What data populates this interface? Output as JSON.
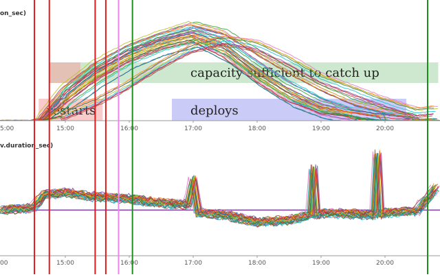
{
  "chart_data": [
    {
      "type": "line",
      "panel_title": "on_sec)",
      "x_ticks": [
        "15:00",
        "16:00",
        "17:00",
        "18:00",
        "19:00",
        "20:00"
      ],
      "x_edge_tick": "5:00",
      "xlim": [
        "14:00",
        "20:50"
      ],
      "y_ticks": [],
      "series_note": "many overlapping per-instance series rising from ~14:40, peaking near 17:00, declining after 17:30",
      "series": [
        {
          "name": "",
          "x": [
            "14:00",
            "14:30",
            "14:40",
            "15:00",
            "15:30",
            "16:00",
            "16:30",
            "17:00",
            "17:30",
            "18:00",
            "18:30",
            "19:00",
            "19:30",
            "20:00",
            "20:30",
            "20:50"
          ],
          "values": [
            0,
            0,
            0.03,
            0.3,
            0.55,
            0.72,
            0.84,
            0.94,
            0.86,
            0.66,
            0.47,
            0.3,
            0.16,
            0.07,
            0.01,
            0.02
          ]
        },
        {
          "name": "",
          "x": [
            "14:00",
            "14:30",
            "14:40",
            "15:00",
            "15:30",
            "16:00",
            "16:30",
            "17:00",
            "17:30",
            "18:00",
            "18:30",
            "19:00",
            "19:30",
            "20:00",
            "20:30",
            "20:50"
          ],
          "values": [
            0,
            0,
            0.02,
            0.25,
            0.5,
            0.68,
            0.8,
            0.88,
            0.78,
            0.55,
            0.34,
            0.18,
            0.08,
            0.03,
            0.0,
            0.0
          ]
        },
        {
          "name": "",
          "x": [
            "14:00",
            "14:30",
            "14:40",
            "15:00",
            "15:30",
            "16:00",
            "16:30",
            "17:00",
            "17:30",
            "18:00",
            "18:30",
            "19:00",
            "19:30",
            "20:00",
            "20:30",
            "20:50"
          ],
          "values": [
            0,
            0,
            0.02,
            0.2,
            0.45,
            0.62,
            0.75,
            0.82,
            0.7,
            0.45,
            0.25,
            0.1,
            0.04,
            0.0,
            0.0,
            0.0
          ]
        },
        {
          "name": "",
          "x": [
            "14:00",
            "14:30",
            "14:40",
            "15:00",
            "15:30",
            "16:00",
            "16:30",
            "17:00",
            "17:30",
            "18:00",
            "18:30",
            "19:00",
            "19:30",
            "20:00",
            "20:30",
            "20:50"
          ],
          "values": [
            0,
            0,
            0.01,
            0.15,
            0.38,
            0.57,
            0.7,
            0.78,
            0.62,
            0.38,
            0.18,
            0.06,
            0.02,
            0.0,
            0.0,
            0.0
          ]
        },
        {
          "name": "",
          "x": [
            "14:00",
            "14:30",
            "14:40",
            "15:00",
            "15:30",
            "16:00",
            "16:30",
            "17:00",
            "17:30",
            "18:00",
            "18:30",
            "19:00",
            "19:30",
            "20:00",
            "20:30",
            "20:50"
          ],
          "values": [
            0,
            0,
            0.0,
            0.05,
            0.18,
            0.35,
            0.55,
            0.72,
            0.8,
            0.75,
            0.6,
            0.42,
            0.3,
            0.18,
            0.08,
            0.1
          ]
        }
      ],
      "annotations": [
        {
          "text": "capacity sufficient to catch up",
          "color": "#a5d6a7",
          "start": "14:45",
          "end": "20:50"
        },
        {
          "text": "restarts",
          "color": "#f4a0a0",
          "start": "14:35",
          "end": "15:35"
        },
        {
          "text": "deploys",
          "color": "#a0a0f0",
          "start": "16:40",
          "end": "20:20"
        }
      ]
    },
    {
      "type": "line",
      "panel_title": "v.duration_sec)",
      "x_ticks": [
        "15:00",
        "16:00",
        "17:00",
        "18:00",
        "19:00",
        "20:00"
      ],
      "x_edge_tick": "00",
      "xlim": [
        "14:00",
        "20:50"
      ],
      "y_ticks": [],
      "series": [
        {
          "name": "",
          "x": [
            "14:00",
            "14:30",
            "14:40",
            "15:00",
            "15:30",
            "16:00",
            "16:30",
            "16:55",
            "17:00",
            "17:05",
            "17:30",
            "18:00",
            "18:30",
            "18:50",
            "18:53",
            "18:56",
            "19:00",
            "19:30",
            "19:50",
            "19:53",
            "19:56",
            "20:00",
            "20:30",
            "20:50"
          ],
          "values": [
            0.45,
            0.47,
            0.6,
            0.62,
            0.58,
            0.56,
            0.52,
            0.5,
            0.75,
            0.42,
            0.4,
            0.33,
            0.35,
            0.4,
            0.85,
            0.4,
            0.42,
            0.41,
            0.4,
            1.0,
            0.4,
            0.42,
            0.44,
            0.7
          ]
        }
      ],
      "reference_line": {
        "value": 0.45,
        "color": "#7a3fa0"
      }
    }
  ],
  "events": [
    {
      "time": "14:31",
      "color": "#e31a1c"
    },
    {
      "time": "14:45",
      "color": "#e31a1c"
    },
    {
      "time": "15:28",
      "color": "#e31a1c"
    },
    {
      "time": "15:38",
      "color": "#e31a1c"
    },
    {
      "time": "15:50",
      "color": "#ee82ee"
    },
    {
      "time": "16:03",
      "color": "#1a8f1a"
    },
    {
      "time": "20:40",
      "color": "#1a8f1a"
    }
  ],
  "colors": {
    "series_palette": [
      "#1f77b4",
      "#2ca02c",
      "#7a3fa0",
      "#e377c2",
      "#17becf",
      "#8c564b",
      "#ff7f0e",
      "#bcbd22",
      "#d62728",
      "#3a7d44"
    ],
    "axis": "#999999"
  }
}
